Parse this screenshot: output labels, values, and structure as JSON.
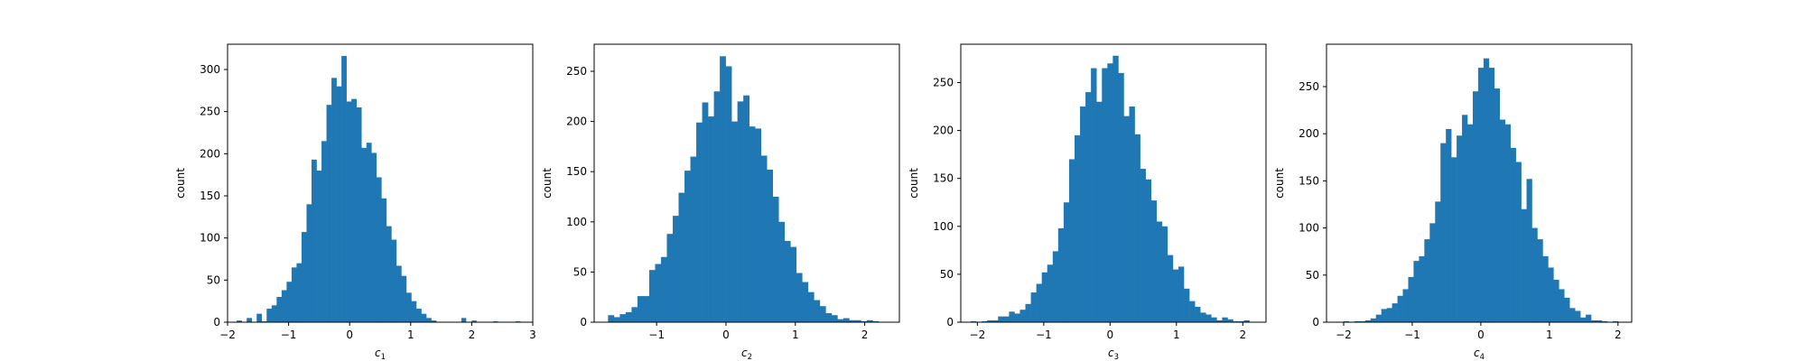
{
  "figure": {
    "background": "#ffffff"
  },
  "bar_color": "#1f77b4",
  "chart_data": [
    {
      "type": "bar",
      "xlabel_base": "c",
      "xlabel_sub": "1",
      "ylabel": "count",
      "xlim": [
        -2.0,
        3.0
      ],
      "ylim": [
        0,
        330
      ],
      "xticks": [
        -2,
        -1,
        0,
        1,
        2,
        3
      ],
      "xtick_labels": [
        "−2",
        "−1",
        "0",
        "1",
        "2",
        "3"
      ],
      "yticks": [
        0,
        50,
        100,
        150,
        200,
        250,
        300
      ],
      "ytick_labels": [
        "0",
        "50",
        "100",
        "150",
        "200",
        "250",
        "300"
      ],
      "bin_edges": [
        -1.85,
        1.5
      ],
      "values": [
        2,
        0,
        5,
        0,
        10,
        1,
        16,
        20,
        30,
        38,
        48,
        65,
        70,
        107,
        140,
        193,
        180,
        215,
        258,
        290,
        280,
        316,
        262,
        265,
        255,
        207,
        213,
        201,
        172,
        147,
        114,
        98,
        67,
        55,
        35,
        25,
        16,
        10,
        5,
        2,
        0
      ],
      "outliers": [
        {
          "x0": 1.83,
          "x1": 1.91,
          "y": 5
        },
        {
          "x0": 2.0,
          "x1": 2.08,
          "y": 2
        },
        {
          "x0": 2.35,
          "x1": 2.43,
          "y": 1
        },
        {
          "x0": 2.72,
          "x1": 2.8,
          "y": 1
        }
      ]
    },
    {
      "type": "bar",
      "xlabel_base": "c",
      "xlabel_sub": "2",
      "ylabel": "count",
      "xlim": [
        -1.9,
        2.5
      ],
      "ylim": [
        0,
        277
      ],
      "xticks": [
        -1,
        0,
        1,
        2
      ],
      "xtick_labels": [
        "−1",
        "0",
        "1",
        "2"
      ],
      "yticks": [
        0,
        50,
        100,
        150,
        200,
        250
      ],
      "ytick_labels": [
        "0",
        "50",
        "100",
        "150",
        "200",
        "250"
      ],
      "bin_edges": [
        -1.7,
        2.2
      ],
      "values": [
        7,
        5,
        8,
        10,
        15,
        26,
        26,
        52,
        58,
        65,
        88,
        106,
        129,
        151,
        165,
        199,
        219,
        205,
        230,
        265,
        255,
        200,
        220,
        226,
        195,
        193,
        166,
        152,
        125,
        100,
        81,
        75,
        49,
        40,
        30,
        22,
        16,
        9,
        7,
        3,
        4,
        2,
        2,
        1,
        2,
        1
      ]
    },
    {
      "type": "bar",
      "xlabel_base": "c",
      "xlabel_sub": "3",
      "ylabel": "count",
      "xlim": [
        -2.25,
        2.35
      ],
      "ylim": [
        0,
        290
      ],
      "xticks": [
        -2,
        -1,
        0,
        1,
        2
      ],
      "xtick_labels": [
        "−2",
        "−1",
        "0",
        "1",
        "2"
      ],
      "yticks": [
        0,
        50,
        100,
        150,
        200,
        250
      ],
      "ytick_labels": [
        "0",
        "50",
        "100",
        "150",
        "200",
        "250"
      ],
      "bin_edges": [
        -2.1,
        2.1
      ],
      "values": [
        1,
        0,
        1,
        2,
        2,
        6,
        6,
        11,
        9,
        13,
        19,
        31,
        40,
        52,
        60,
        74,
        98,
        125,
        170,
        195,
        225,
        240,
        265,
        230,
        265,
        270,
        278,
        260,
        215,
        225,
        196,
        160,
        149,
        127,
        105,
        100,
        70,
        55,
        58,
        35,
        22,
        16,
        10,
        8,
        5,
        2,
        5,
        3,
        1,
        1,
        2
      ],
      "outliers": []
    },
    {
      "type": "bar",
      "xlabel_base": "c",
      "xlabel_sub": "4",
      "ylabel": "count",
      "xlim": [
        -2.25,
        2.2
      ],
      "ylim": [
        0,
        295
      ],
      "xticks": [
        -2,
        -1,
        0,
        1,
        2
      ],
      "xtick_labels": [
        "−2",
        "−1",
        "0",
        "1",
        "2"
      ],
      "yticks": [
        0,
        50,
        100,
        150,
        200,
        250
      ],
      "ytick_labels": [
        "0",
        "50",
        "100",
        "150",
        "200",
        "250"
      ],
      "bin_edges": [
        -2.0,
        2.0
      ],
      "values": [
        1,
        0,
        1,
        1,
        2,
        4,
        8,
        14,
        15,
        20,
        28,
        35,
        48,
        65,
        70,
        88,
        105,
        128,
        190,
        205,
        175,
        198,
        220,
        210,
        245,
        270,
        280,
        270,
        248,
        215,
        210,
        185,
        170,
        120,
        152,
        100,
        88,
        70,
        58,
        45,
        35,
        26,
        15,
        12,
        5,
        8,
        2,
        2,
        1,
        0,
        1
      ]
    }
  ]
}
